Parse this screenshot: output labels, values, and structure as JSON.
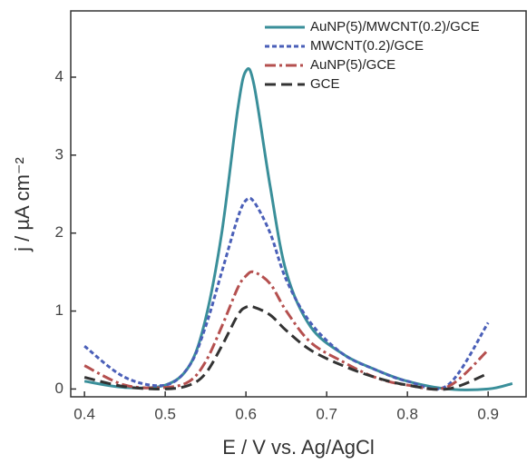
{
  "chart_data": {
    "type": "line",
    "xlabel": "E / V vs. Ag/AgCl",
    "ylabel": "j / µA cm⁻²",
    "x": [
      0.4,
      0.45,
      0.5,
      0.53,
      0.55,
      0.57,
      0.59,
      0.6,
      0.61,
      0.63,
      0.65,
      0.68,
      0.72,
      0.76,
      0.8,
      0.85,
      0.9,
      0.93
    ],
    "series": [
      {
        "name": "AuNP(5)/MWCNT(0.2)/GCE",
        "color": "#3a8f9a",
        "dash": "solid",
        "values": [
          0.1,
          0.02,
          0.05,
          0.3,
          0.9,
          2.0,
          3.6,
          4.08,
          3.9,
          2.6,
          1.5,
          0.8,
          0.45,
          0.25,
          0.1,
          0.0,
          0.0,
          0.07
        ]
      },
      {
        "name": "MWCNT(0.2)/GCE",
        "color": "#4a5fb8",
        "dash": "dotted",
        "values": [
          0.55,
          0.15,
          0.05,
          0.3,
          0.8,
          1.5,
          2.2,
          2.42,
          2.4,
          2.0,
          1.4,
          0.85,
          0.45,
          0.25,
          0.1,
          0.05,
          0.85,
          null
        ]
      },
      {
        "name": "AuNP(5)/GCE",
        "color": "#b5504f",
        "dash": "dashdot",
        "values": [
          0.3,
          0.05,
          0.02,
          0.1,
          0.35,
          0.8,
          1.3,
          1.45,
          1.5,
          1.35,
          1.0,
          0.6,
          0.35,
          0.15,
          0.05,
          0.03,
          0.5,
          null
        ]
      },
      {
        "name": "GCE",
        "color": "#333333",
        "dash": "dashed",
        "values": [
          0.15,
          0.03,
          0.0,
          0.05,
          0.2,
          0.55,
          0.95,
          1.05,
          1.05,
          0.95,
          0.75,
          0.5,
          0.3,
          0.15,
          0.05,
          0.0,
          0.2,
          null
        ]
      }
    ],
    "xlim": [
      0.383,
      0.947
    ],
    "ylim": [
      -0.1,
      4.85
    ],
    "xticks": [
      0.4,
      0.5,
      0.6,
      0.7,
      0.8,
      0.9
    ],
    "yticks": [
      0,
      1,
      2,
      3,
      4
    ],
    "legend": "upper right"
  }
}
